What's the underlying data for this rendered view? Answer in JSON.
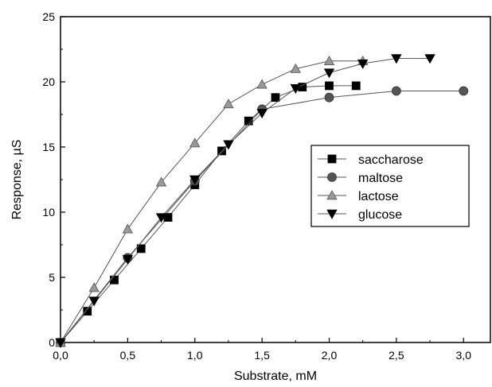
{
  "chart_data": {
    "type": "line",
    "title": "",
    "xlabel": "Substrate, mM",
    "ylabel": "Response, µS",
    "xlim": [
      0,
      3.2
    ],
    "ylim": [
      0,
      25
    ],
    "x_ticks": [
      0,
      0.5,
      1.0,
      1.5,
      2.0,
      2.5,
      3.0
    ],
    "x_tick_labels": [
      "0,0",
      "0,5",
      "1,0",
      "1,5",
      "2,0",
      "2,5",
      "3,0"
    ],
    "y_ticks": [
      0,
      5,
      10,
      15,
      20,
      25
    ],
    "y_tick_labels": [
      "0",
      "5",
      "10",
      "15",
      "20",
      "25"
    ],
    "grid": false,
    "legend_position": "center-right",
    "series": [
      {
        "name": "saccharose",
        "marker": "square",
        "marker_color": "#000000",
        "x": [
          0,
          0.2,
          0.4,
          0.6,
          0.8,
          1.0,
          1.2,
          1.4,
          1.6,
          1.8,
          2.0,
          2.2
        ],
        "y": [
          0,
          2.4,
          4.8,
          7.2,
          9.6,
          12.1,
          14.7,
          17.0,
          18.8,
          19.6,
          19.7,
          19.7
        ]
      },
      {
        "name": "maltose",
        "marker": "circle",
        "marker_color": "#555555",
        "x": [
          0,
          0.5,
          1.0,
          1.5,
          2.0,
          2.5,
          3.0
        ],
        "y": [
          0,
          6.5,
          12.4,
          17.9,
          18.8,
          19.3,
          19.3
        ]
      },
      {
        "name": "lactose",
        "marker": "triangle-up",
        "marker_color": "#999999",
        "x": [
          0,
          0.25,
          0.5,
          0.75,
          1.0,
          1.25,
          1.5,
          1.75,
          2.0,
          2.25
        ],
        "y": [
          0,
          4.2,
          8.7,
          12.3,
          15.3,
          18.3,
          19.8,
          21.0,
          21.6,
          21.6
        ]
      },
      {
        "name": "glucose",
        "marker": "triangle-down",
        "marker_color": "#000000",
        "x": [
          0,
          0.25,
          0.5,
          0.75,
          1.0,
          1.25,
          1.5,
          1.75,
          2.0,
          2.25,
          2.5,
          2.75
        ],
        "y": [
          0,
          3.2,
          6.4,
          9.6,
          12.5,
          15.2,
          17.6,
          19.5,
          20.7,
          21.4,
          21.8,
          21.8
        ]
      }
    ]
  }
}
